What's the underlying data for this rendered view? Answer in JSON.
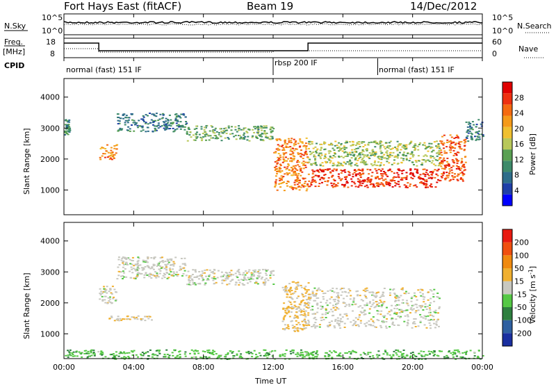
{
  "header": {
    "title": "Fort Hays East (fitACF)",
    "beam": "Beam 19",
    "date": "14/Dec/2012"
  },
  "sky_panel": {
    "left_label": "N.Sky",
    "right_label": "N.Search",
    "ticks": [
      "10^5",
      "10^0"
    ]
  },
  "freq_panel": {
    "left_label_line1": "Freq.",
    "left_label_line2": "[MHz]",
    "left_ticks": [
      "18",
      "8"
    ],
    "right_label": "Nave",
    "right_ticks": [
      "60",
      "0"
    ]
  },
  "cpid": {
    "label": "CPID",
    "modes": [
      {
        "name": "normal (fast) 151 IF",
        "start_h": 0,
        "end_h": 12
      },
      {
        "name": "rbsp 200 IF",
        "start_h": 12,
        "end_h": 18
      },
      {
        "name": "normal (fast) 151 IF",
        "start_h": 18,
        "end_h": 24
      }
    ]
  },
  "power_panel": {
    "ylabel": "Slant Range [km]",
    "yticks": [
      "4000",
      "3000",
      "2000",
      "1000"
    ],
    "colorbar_label": "Power [dB]",
    "colorbar_ticks": [
      "28",
      "24",
      "20",
      "16",
      "12",
      "8",
      "4"
    ]
  },
  "velocity_panel": {
    "ylabel": "Slant Range [km]",
    "yticks": [
      "4000",
      "3000",
      "2000",
      "1000"
    ],
    "colorbar_label": "Velocity [m s",
    "colorbar_label_sup": "-1",
    "colorbar_label_end": "]",
    "colorbar_ticks": [
      "200",
      "100",
      "50",
      "15",
      "-15",
      "-50",
      "-100",
      "-200"
    ]
  },
  "x_axis": {
    "ticks": [
      "00:00",
      "04:00",
      "08:00",
      "12:00",
      "16:00",
      "20:00",
      "00:00"
    ],
    "label": "Time UT"
  },
  "colors": {
    "power_scale": [
      "#0000ff",
      "#1f3fa8",
      "#2e6d8a",
      "#3d8a6a",
      "#5aa053",
      "#b8c85a",
      "#f0c030",
      "#f59a1a",
      "#f56a10",
      "#ee3010",
      "#e00000"
    ],
    "velocity_scale": [
      "#1a2fa0",
      "#2f60a0",
      "#2e7f3f",
      "#55c845",
      "#c8c8c0",
      "#f0b030",
      "#f08a10",
      "#f05010",
      "#e81a10"
    ],
    "ground": "#c8c8c0"
  },
  "chart_data": [
    {
      "type": "heatmap",
      "name": "power",
      "x_unit": "hours UT",
      "xlim": [
        0,
        24
      ],
      "ylim": [
        200,
        4600
      ],
      "zlim": [
        0,
        30
      ],
      "bands": [
        {
          "x": [
            0.0,
            0.3
          ],
          "y": [
            2800,
            3300
          ],
          "z": 10
        },
        {
          "x": [
            2.0,
            3.0
          ],
          "y": [
            2000,
            2500
          ],
          "z": 22
        },
        {
          "x": [
            3.0,
            7.0
          ],
          "y": [
            2900,
            3500
          ],
          "z": 8
        },
        {
          "x": [
            7.0,
            12.0
          ],
          "y": [
            2600,
            3100
          ],
          "z": 12
        },
        {
          "x": [
            12.0,
            14.0
          ],
          "y": [
            1000,
            2700
          ],
          "z": 22
        },
        {
          "x": [
            14.0,
            21.5
          ],
          "y": [
            1100,
            1700
          ],
          "z": 26
        },
        {
          "x": [
            14.0,
            21.5
          ],
          "y": [
            1800,
            2600
          ],
          "z": 14
        },
        {
          "x": [
            21.5,
            23.0
          ],
          "y": [
            1300,
            2800
          ],
          "z": 24
        },
        {
          "x": [
            23.0,
            24.0
          ],
          "y": [
            2600,
            3300
          ],
          "z": 8
        }
      ]
    },
    {
      "type": "heatmap",
      "name": "velocity",
      "x_unit": "hours UT",
      "xlim": [
        0,
        24
      ],
      "ylim": [
        200,
        4600
      ],
      "zlim": [
        -200,
        200
      ],
      "bands": [
        {
          "x": [
            2.0,
            3.0
          ],
          "y": [
            2000,
            2600
          ],
          "z": 0
        },
        {
          "x": [
            3.0,
            7.0
          ],
          "y": [
            2800,
            3500
          ],
          "z": 0
        },
        {
          "x": [
            2.5,
            5.0
          ],
          "y": [
            1450,
            1600
          ],
          "z": 30
        },
        {
          "x": [
            7.0,
            12.0
          ],
          "y": [
            2600,
            3100
          ],
          "z": 0
        },
        {
          "x": [
            12.5,
            14.0
          ],
          "y": [
            1100,
            2700
          ],
          "z": 30
        },
        {
          "x": [
            14.0,
            21.5
          ],
          "y": [
            1200,
            2500
          ],
          "z": 0
        },
        {
          "x": [
            0.0,
            24.0
          ],
          "y": [
            200,
            500
          ],
          "z": -50
        }
      ]
    }
  ]
}
